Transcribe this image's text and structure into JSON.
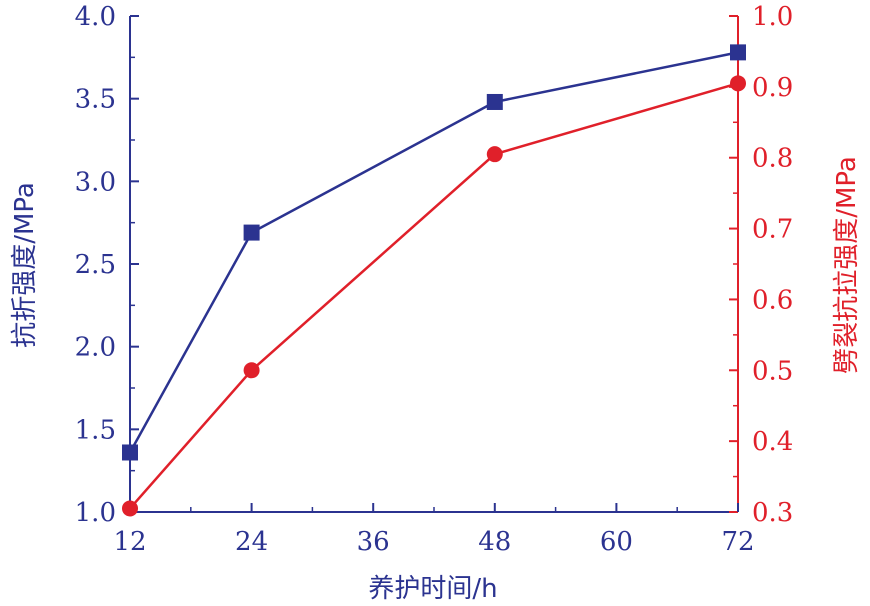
{
  "chart_data": {
    "type": "line",
    "xlabel": "养护时间/h",
    "x_ticks": [
      "12",
      "24",
      "36",
      "48",
      "60",
      "72"
    ],
    "xlim": [
      12,
      72
    ],
    "y_left": {
      "label": "抗折强度/MPa",
      "lim": [
        1.0,
        4.0
      ],
      "ticks": [
        "1.0",
        "1.5",
        "2.0",
        "2.5",
        "3.0",
        "3.5",
        "4.0"
      ],
      "color": "#2b3390"
    },
    "y_right": {
      "label": "劈裂抗拉强度/MPa",
      "lim": [
        0.3,
        1.0
      ],
      "ticks": [
        "0.3",
        "0.4",
        "0.5",
        "0.6",
        "0.7",
        "0.8",
        "0.9",
        "1.0"
      ],
      "color": "#e0202a"
    },
    "series": [
      {
        "axis": "left",
        "marker": "square",
        "color": "#2b3390",
        "x": [
          12,
          24,
          48,
          72
        ],
        "y": [
          1.36,
          2.69,
          3.48,
          3.78
        ]
      },
      {
        "axis": "right",
        "marker": "circle",
        "color": "#e0202a",
        "x": [
          12,
          24,
          48,
          72
        ],
        "y": [
          0.305,
          0.5,
          0.805,
          0.905
        ]
      }
    ]
  }
}
